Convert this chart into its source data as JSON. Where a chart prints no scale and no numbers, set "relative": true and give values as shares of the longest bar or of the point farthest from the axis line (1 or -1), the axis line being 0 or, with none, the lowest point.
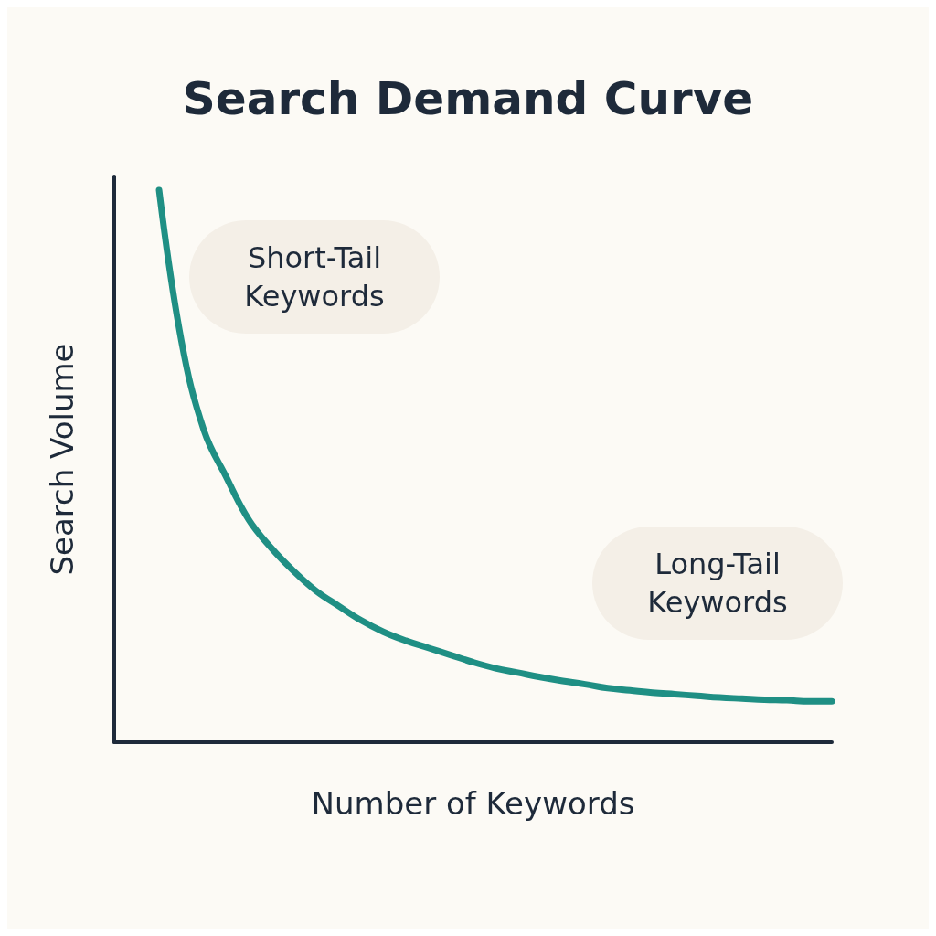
{
  "chart_data": {
    "type": "line",
    "title": "Search Demand Curve",
    "xlabel": "Number of Keywords",
    "ylabel": "Search Volume",
    "relative": true,
    "grid": false,
    "marker": "none",
    "line_style": "solid",
    "annotations": [
      "Short-Tail\nKeywords",
      "Long-Tail\nKeywords"
    ],
    "categories": [
      null,
      null,
      null,
      null,
      null,
      null,
      null,
      null,
      null,
      null,
      null,
      null,
      null,
      null,
      null,
      null,
      null,
      null,
      null,
      null,
      null,
      null,
      null,
      null,
      null,
      null,
      null,
      null,
      null,
      null,
      null,
      null,
      null
    ],
    "series": [
      {
        "color": "#1f8f84",
        "values": [
          null,
          null,
          1.0,
          0.726,
          0.565,
          0.48,
          0.403,
          0.352,
          0.31,
          0.274,
          0.247,
          0.221,
          0.2,
          0.184,
          0.171,
          0.158,
          0.145,
          0.134,
          0.126,
          0.118,
          0.111,
          0.105,
          0.098,
          0.094,
          0.09,
          0.087,
          0.084,
          0.081,
          0.079,
          0.077,
          0.076,
          0.074,
          0.074
        ]
      }
    ]
  }
}
